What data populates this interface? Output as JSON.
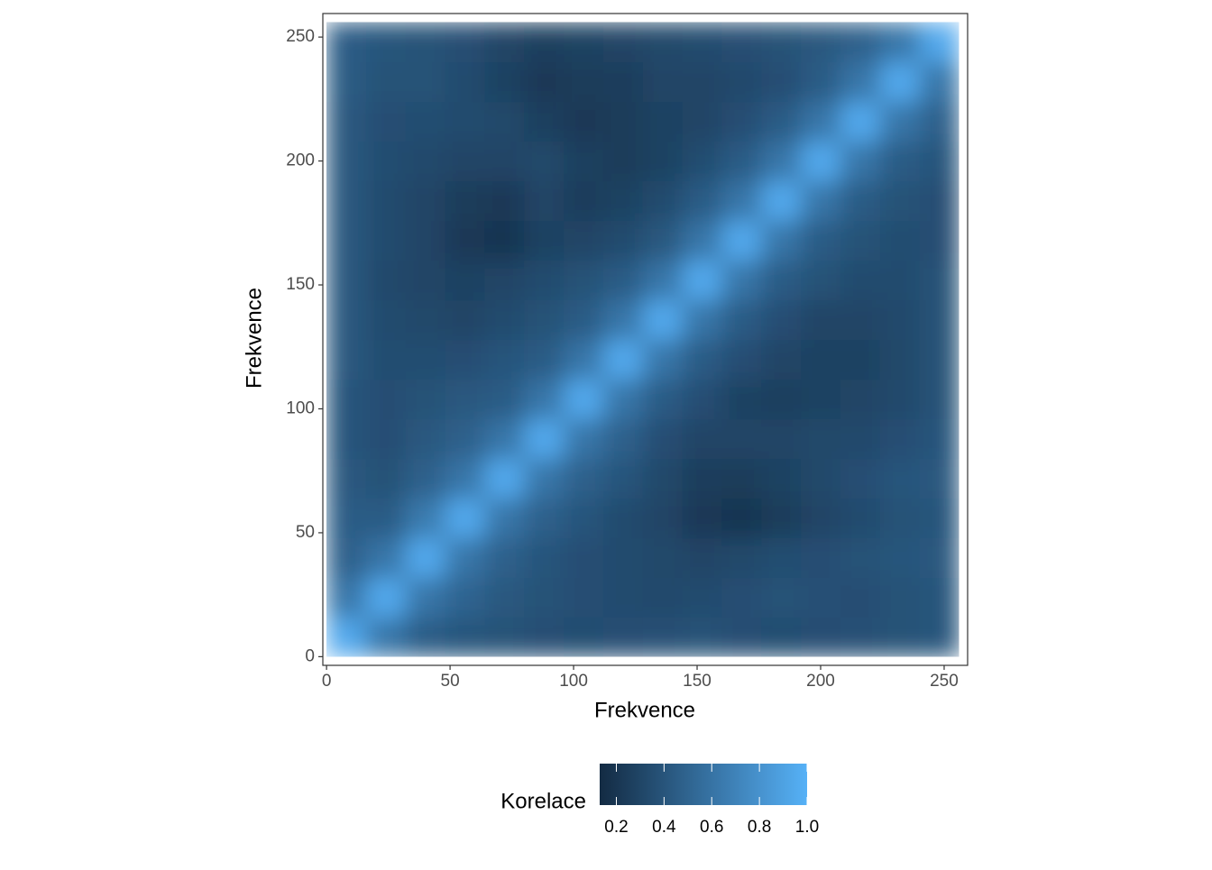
{
  "chart_data": {
    "type": "heatmap",
    "x_label": "Frekvence",
    "y_label": "Frekvence",
    "x_bins": [
      0,
      16,
      32,
      48,
      64,
      80,
      96,
      112,
      128,
      144,
      160,
      176,
      192,
      208,
      224,
      240,
      256
    ],
    "y_bins": [
      0,
      16,
      32,
      48,
      64,
      80,
      96,
      112,
      128,
      144,
      160,
      176,
      192,
      208,
      224,
      240,
      256
    ],
    "z": [
      [
        0.95,
        0.62,
        0.45,
        0.4,
        0.38,
        0.36,
        0.35,
        0.36,
        0.37,
        0.38,
        0.36,
        0.35,
        0.36,
        0.37,
        0.38,
        0.4
      ],
      [
        0.62,
        0.95,
        0.62,
        0.5,
        0.42,
        0.38,
        0.36,
        0.34,
        0.33,
        0.34,
        0.36,
        0.38,
        0.37,
        0.36,
        0.38,
        0.4
      ],
      [
        0.48,
        0.62,
        0.95,
        0.62,
        0.48,
        0.4,
        0.36,
        0.34,
        0.32,
        0.3,
        0.32,
        0.35,
        0.36,
        0.38,
        0.4,
        0.42
      ],
      [
        0.45,
        0.45,
        0.65,
        0.95,
        0.62,
        0.48,
        0.4,
        0.34,
        0.3,
        0.22,
        0.2,
        0.24,
        0.3,
        0.34,
        0.38,
        0.4
      ],
      [
        0.42,
        0.38,
        0.48,
        0.62,
        0.95,
        0.62,
        0.48,
        0.4,
        0.32,
        0.25,
        0.24,
        0.28,
        0.32,
        0.36,
        0.4,
        0.42
      ],
      [
        0.4,
        0.36,
        0.42,
        0.48,
        0.62,
        0.95,
        0.62,
        0.48,
        0.36,
        0.3,
        0.3,
        0.3,
        0.32,
        0.33,
        0.36,
        0.4
      ],
      [
        0.4,
        0.36,
        0.38,
        0.42,
        0.45,
        0.62,
        0.95,
        0.62,
        0.45,
        0.36,
        0.28,
        0.26,
        0.28,
        0.3,
        0.33,
        0.38
      ],
      [
        0.42,
        0.35,
        0.35,
        0.36,
        0.4,
        0.45,
        0.62,
        0.95,
        0.62,
        0.45,
        0.36,
        0.3,
        0.28,
        0.28,
        0.32,
        0.38
      ],
      [
        0.42,
        0.34,
        0.32,
        0.3,
        0.34,
        0.38,
        0.45,
        0.62,
        0.95,
        0.62,
        0.45,
        0.36,
        0.3,
        0.3,
        0.33,
        0.38
      ],
      [
        0.42,
        0.33,
        0.3,
        0.28,
        0.3,
        0.34,
        0.38,
        0.45,
        0.62,
        0.95,
        0.62,
        0.45,
        0.38,
        0.34,
        0.34,
        0.38
      ],
      [
        0.42,
        0.34,
        0.3,
        0.22,
        0.2,
        0.28,
        0.3,
        0.34,
        0.42,
        0.62,
        0.95,
        0.62,
        0.45,
        0.38,
        0.35,
        0.36
      ],
      [
        0.42,
        0.34,
        0.3,
        0.24,
        0.22,
        0.3,
        0.25,
        0.28,
        0.34,
        0.45,
        0.62,
        0.95,
        0.62,
        0.45,
        0.38,
        0.36
      ],
      [
        0.42,
        0.35,
        0.33,
        0.3,
        0.3,
        0.32,
        0.26,
        0.24,
        0.28,
        0.35,
        0.45,
        0.62,
        0.95,
        0.62,
        0.45,
        0.4
      ],
      [
        0.42,
        0.36,
        0.35,
        0.34,
        0.32,
        0.26,
        0.22,
        0.24,
        0.28,
        0.3,
        0.36,
        0.45,
        0.62,
        0.95,
        0.62,
        0.48
      ],
      [
        0.44,
        0.38,
        0.38,
        0.34,
        0.28,
        0.22,
        0.24,
        0.25,
        0.3,
        0.3,
        0.33,
        0.36,
        0.45,
        0.62,
        0.95,
        0.62
      ],
      [
        0.45,
        0.4,
        0.38,
        0.36,
        0.3,
        0.26,
        0.28,
        0.3,
        0.32,
        0.34,
        0.36,
        0.38,
        0.42,
        0.48,
        0.62,
        0.95
      ]
    ],
    "xlim": [
      -1.5,
      259.5
    ],
    "ylim": [
      -3.5,
      259.5
    ],
    "xticks": [
      0,
      50,
      100,
      150,
      200,
      250
    ],
    "yticks": [
      0,
      50,
      100,
      150,
      200,
      250
    ],
    "legend_title": "Korelace",
    "color_low": "#132B43",
    "color_high": "#56B1F7",
    "color_limits": [
      0.13,
      1
    ],
    "legend_ticks": [
      {
        "value": 0.2,
        "label": "0.2"
      },
      {
        "value": 0.4,
        "label": "0.4"
      },
      {
        "value": 0.6,
        "label": "0.6"
      },
      {
        "value": 0.8,
        "label": "0.8"
      },
      {
        "value": 1,
        "label": "1.0"
      }
    ],
    "smooth": true
  }
}
